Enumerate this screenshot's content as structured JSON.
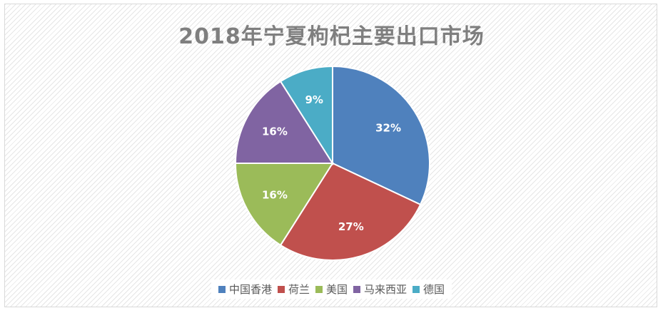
{
  "chart_data": {
    "type": "pie",
    "title": "2018年宁夏枸杞主要出口市场",
    "categories": [
      "中国香港",
      "荷兰",
      "美国",
      "马来西亚",
      "德国"
    ],
    "values": [
      32,
      27,
      16,
      16,
      9
    ],
    "labels": [
      "32%",
      "27%",
      "16%",
      "16%",
      "9%"
    ],
    "colors": [
      "#4F81BD",
      "#C0504D",
      "#9BBB59",
      "#8064A2",
      "#4BACC6"
    ],
    "legend_position": "bottom"
  }
}
